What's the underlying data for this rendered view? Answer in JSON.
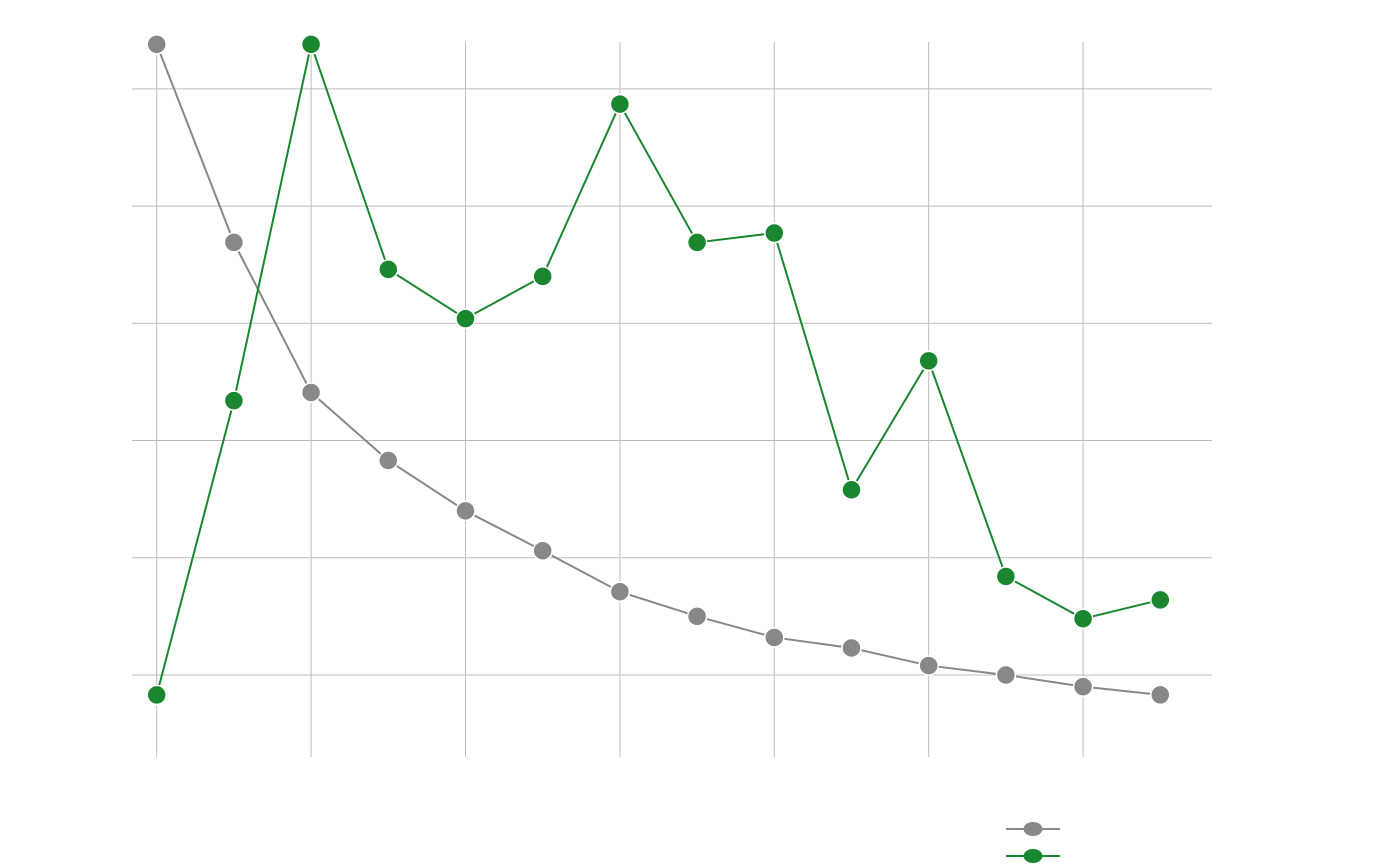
{
  "chart_data": {
    "type": "line",
    "title": "",
    "xlabel": "",
    "ylabel": "",
    "x": [
      1,
      2,
      3,
      4,
      5,
      6,
      7,
      8,
      9,
      10,
      11,
      12,
      13,
      14
    ],
    "xlim": [
      0.68,
      14.67
    ],
    "ylim": [
      0.0,
      6.1
    ],
    "x_gridlines": [
      1,
      3,
      5,
      7,
      9,
      11,
      13
    ],
    "y_gridlines": [
      0.7,
      1.7,
      2.7,
      3.7,
      4.7,
      5.7
    ],
    "grid": true,
    "legend_position": "bottom-right",
    "series": [
      {
        "name": "",
        "color": "#888888",
        "values": [
          6.08,
          4.39,
          3.11,
          2.53,
          2.1,
          1.76,
          1.41,
          1.2,
          1.02,
          0.93,
          0.78,
          0.7,
          0.6,
          0.53
        ]
      },
      {
        "name": "",
        "color": "#1a8630",
        "values": [
          0.53,
          3.04,
          6.08,
          4.16,
          3.74,
          4.1,
          5.57,
          4.39,
          4.47,
          2.28,
          3.38,
          1.54,
          1.18,
          1.34
        ]
      }
    ]
  }
}
